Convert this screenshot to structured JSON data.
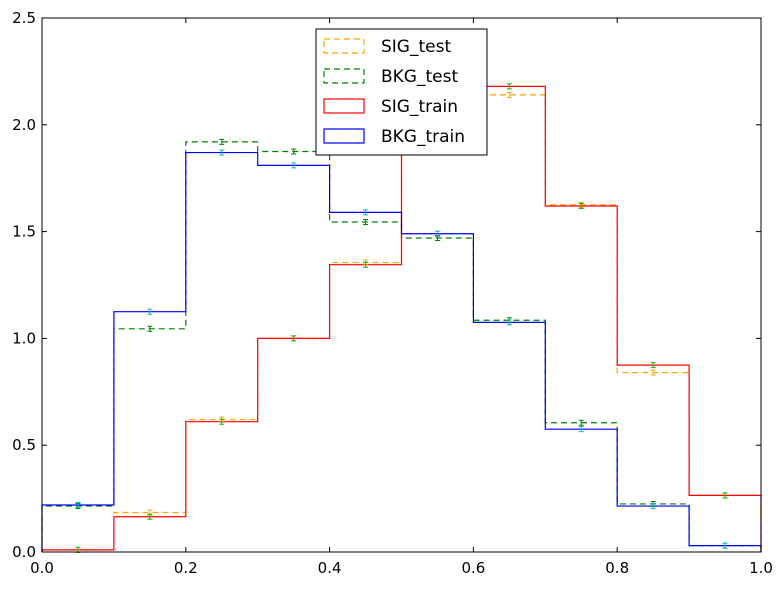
{
  "chart_data": {
    "type": "step-histogram",
    "title": "",
    "xlabel": "",
    "ylabel": "",
    "xlim": [
      0.0,
      1.0
    ],
    "ylim": [
      0.0,
      2.5
    ],
    "grid": false,
    "legend_position": "top-center",
    "bin_edges": [
      0.0,
      0.1,
      0.2,
      0.3,
      0.4,
      0.5,
      0.6,
      0.7,
      0.8,
      0.9,
      1.0
    ],
    "x_ticks": [
      {
        "value": 0.0,
        "label": "0.0"
      },
      {
        "value": 0.2,
        "label": "0.2"
      },
      {
        "value": 0.4,
        "label": "0.4"
      },
      {
        "value": 0.6,
        "label": "0.6"
      },
      {
        "value": 0.8,
        "label": "0.8"
      },
      {
        "value": 1.0,
        "label": "1.0"
      }
    ],
    "y_ticks": [
      {
        "value": 0.0,
        "label": "0.0"
      },
      {
        "value": 0.5,
        "label": "0.5"
      },
      {
        "value": 1.0,
        "label": "1.0"
      },
      {
        "value": 1.5,
        "label": "1.5"
      },
      {
        "value": 2.0,
        "label": "2.0"
      },
      {
        "value": 2.5,
        "label": "2.5"
      }
    ],
    "series": [
      {
        "name": "SIG_test",
        "color": "#ffa500",
        "style": "dashed",
        "errorbar_color": "#ffa500",
        "values": [
          0.01,
          0.185,
          0.62,
          1.0,
          1.355,
          2.175,
          2.14,
          1.625,
          0.84,
          0.265
        ]
      },
      {
        "name": "BKG_test",
        "color": "#008000",
        "style": "dashed",
        "errorbar_color": "#008000",
        "values": [
          0.215,
          1.045,
          1.92,
          1.875,
          1.545,
          1.47,
          1.085,
          0.605,
          0.225,
          0.03
        ]
      },
      {
        "name": "SIG_train",
        "color": "#ff0000",
        "style": "solid",
        "errorbar_color": "#00c000",
        "values": [
          0.01,
          0.165,
          0.61,
          1.0,
          1.345,
          2.18,
          2.18,
          1.62,
          0.875,
          0.265
        ]
      },
      {
        "name": "BKG_train",
        "color": "#0000ff",
        "style": "solid",
        "errorbar_color": "#00bfbf",
        "values": [
          0.22,
          1.125,
          1.87,
          1.81,
          1.59,
          1.49,
          1.075,
          0.575,
          0.215,
          0.03
        ]
      }
    ]
  }
}
